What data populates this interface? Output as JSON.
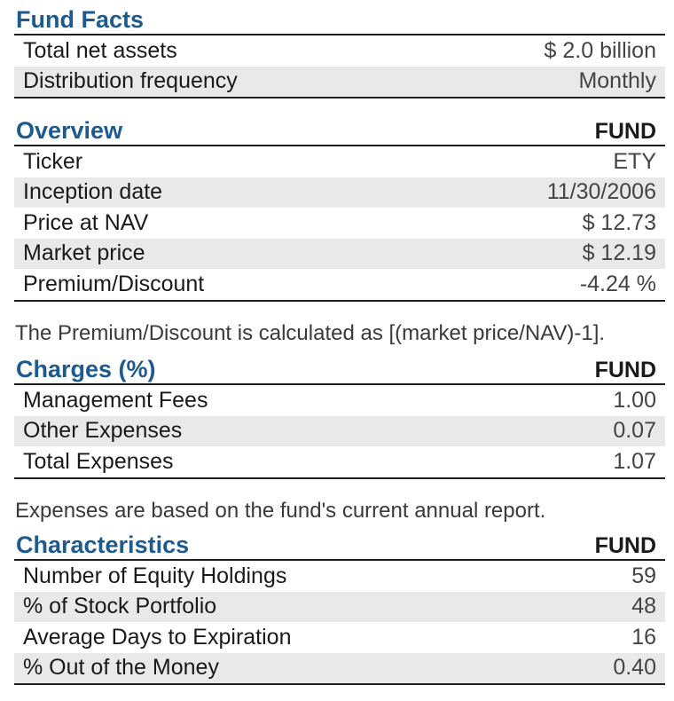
{
  "fund_facts": {
    "title": "Fund Facts",
    "rows": [
      {
        "label": "Total net assets",
        "value": "$ 2.0 billion"
      },
      {
        "label": "Distribution frequency",
        "value": "Monthly"
      }
    ]
  },
  "overview": {
    "title": "Overview",
    "column": "FUND",
    "rows": [
      {
        "label": "Ticker",
        "value": "ETY"
      },
      {
        "label": "Inception date",
        "value": "11/30/2006"
      },
      {
        "label": "Price at NAV",
        "value": "$ 12.73"
      },
      {
        "label": "Market price",
        "value": "$ 12.19"
      },
      {
        "label": "Premium/Discount",
        "value": "-4.24 %"
      }
    ],
    "note": "The Premium/Discount is calculated as [(market price/NAV)-1]."
  },
  "charges": {
    "title": "Charges (%)",
    "column": "FUND",
    "rows": [
      {
        "label": "Management Fees",
        "value": "1.00"
      },
      {
        "label": "Other Expenses",
        "value": "0.07"
      },
      {
        "label": "Total Expenses",
        "value": "1.07"
      }
    ],
    "note": "Expenses are based on the fund's current annual report."
  },
  "characteristics": {
    "title": "Characteristics",
    "column": "FUND",
    "rows": [
      {
        "label": "Number of Equity Holdings",
        "value": "59"
      },
      {
        "label": "% of Stock Portfolio",
        "value": "48"
      },
      {
        "label": "Average Days to Expiration",
        "value": "16"
      },
      {
        "label": "% Out of the Money",
        "value": "0.40"
      }
    ]
  }
}
